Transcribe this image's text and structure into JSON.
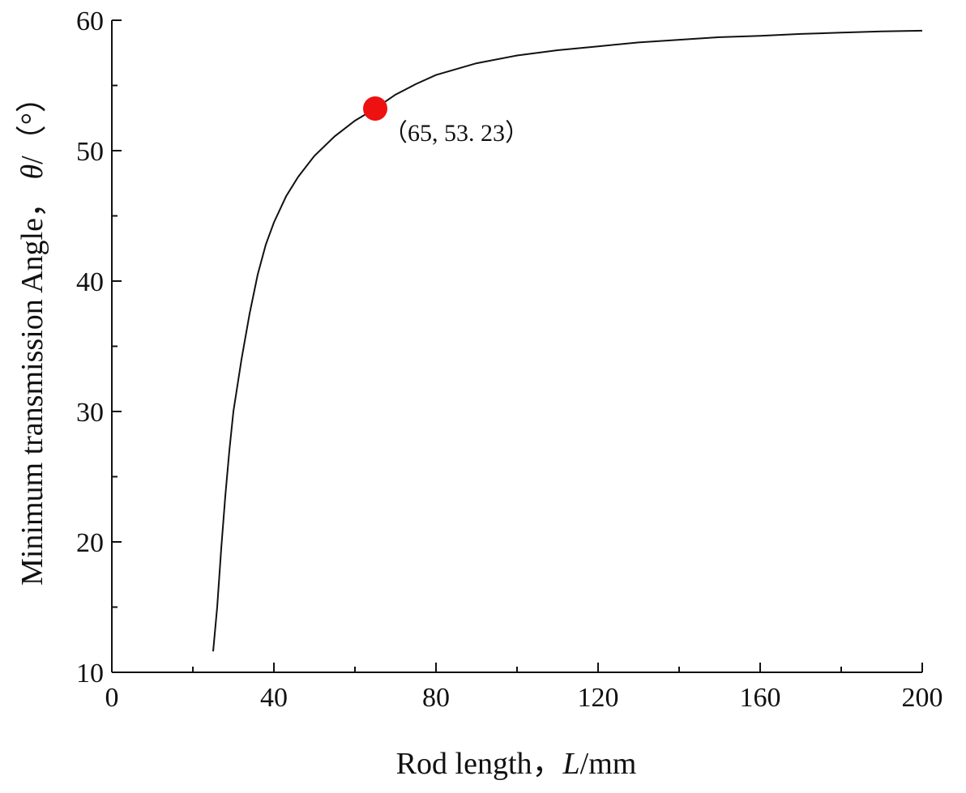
{
  "chart_data": {
    "type": "line",
    "xlabel": {
      "prefix": "Rod length，",
      "var": "L",
      "suffix": "/mm"
    },
    "ylabel": {
      "prefix": "Minimum transmission Angle， ",
      "var": "θ",
      "suffix": "/（°）"
    },
    "xlim": [
      0,
      200
    ],
    "ylim": [
      10,
      60
    ],
    "x_ticks": [
      0,
      40,
      80,
      120,
      160,
      200
    ],
    "y_ticks": [
      10,
      20,
      30,
      40,
      50,
      60
    ],
    "x_minor_ticks": [
      20,
      60,
      100,
      140,
      180
    ],
    "y_minor_ticks": [
      15,
      25,
      35,
      45,
      55
    ],
    "grid": false,
    "series": [
      {
        "color": "#111111",
        "x": [
          25,
          26,
          27,
          28,
          29,
          30,
          32,
          34,
          36,
          38,
          40,
          43,
          46,
          50,
          55,
          60,
          65,
          70,
          75,
          80,
          90,
          100,
          110,
          120,
          130,
          140,
          150,
          160,
          170,
          180,
          190,
          200
        ],
        "y": [
          11.6,
          15.0,
          19.5,
          23.5,
          27.0,
          30.0,
          34.0,
          37.5,
          40.5,
          42.8,
          44.5,
          46.5,
          48.0,
          49.6,
          51.1,
          52.3,
          53.23,
          54.3,
          55.1,
          55.8,
          56.7,
          57.3,
          57.7,
          58.0,
          58.3,
          58.5,
          58.7,
          58.8,
          58.95,
          59.05,
          59.15,
          59.2
        ]
      }
    ],
    "highlight": {
      "x": 65,
      "y": 53.23,
      "color": "#ee1111",
      "label": "（65, 53. 23）"
    }
  }
}
